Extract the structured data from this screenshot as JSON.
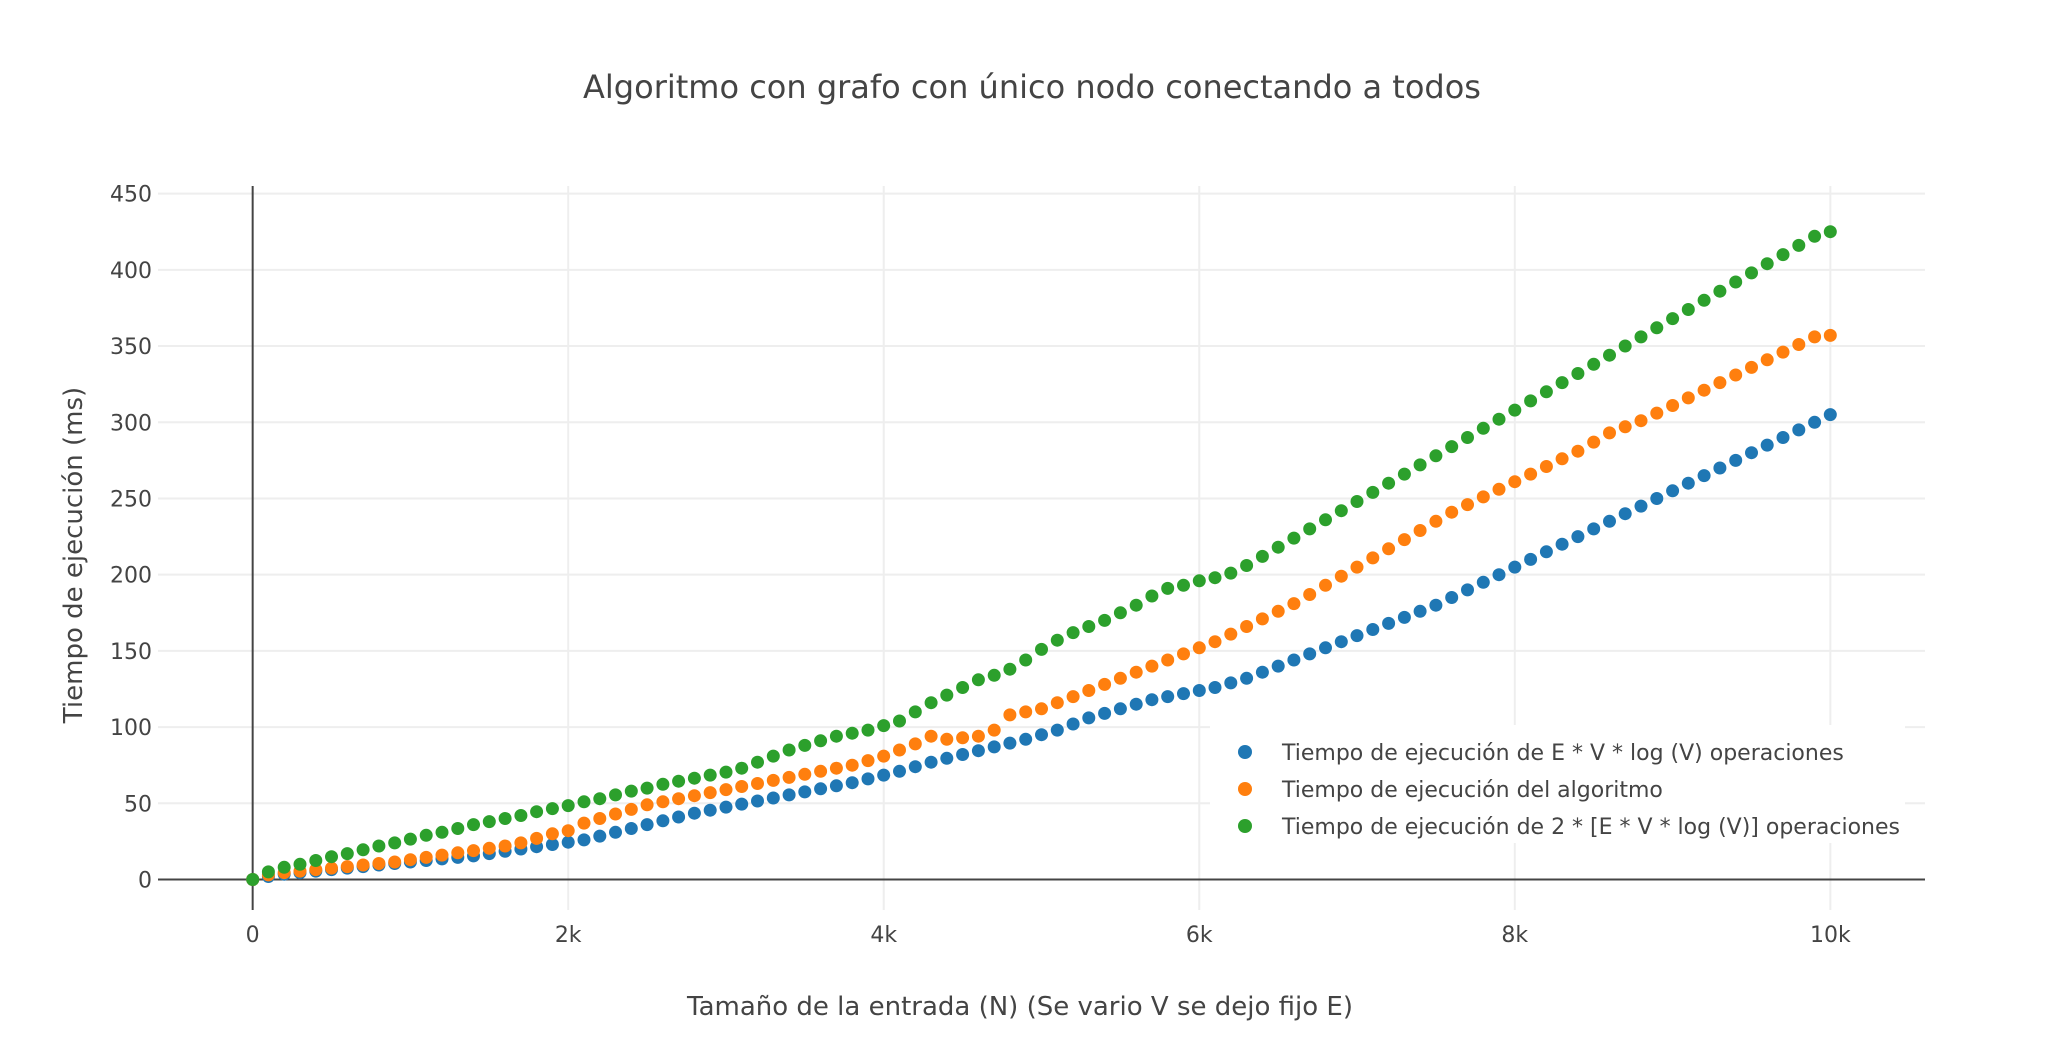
{
  "chart_data": {
    "type": "scatter",
    "title": "Algoritmo con grafo con único nodo conectando a todos",
    "xlabel": "Tamaño de la entrada (N) (Se vario V se dejo fijo E)",
    "ylabel": "Tiempo de ejecución (ms)",
    "xlim": [
      -600,
      10600
    ],
    "ylim": [
      -20,
      455
    ],
    "x_ticks": [
      0,
      2000,
      4000,
      6000,
      8000,
      10000
    ],
    "x_tick_labels": [
      "0",
      "2k",
      "4k",
      "6k",
      "8k",
      "10k"
    ],
    "y_ticks": [
      0,
      50,
      100,
      150,
      200,
      250,
      300,
      350,
      400,
      450
    ],
    "y_tick_labels": [
      "0",
      "50",
      "100",
      "150",
      "200",
      "250",
      "300",
      "350",
      "400",
      "450"
    ],
    "grid": true,
    "legend_position": "bottom-right",
    "x": [
      0,
      100,
      200,
      300,
      400,
      500,
      600,
      700,
      800,
      900,
      1000,
      1100,
      1200,
      1300,
      1400,
      1500,
      1600,
      1700,
      1800,
      1900,
      2000,
      2100,
      2200,
      2300,
      2400,
      2500,
      2600,
      2700,
      2800,
      2900,
      3000,
      3100,
      3200,
      3300,
      3400,
      3500,
      3600,
      3700,
      3800,
      3900,
      4000,
      4100,
      4200,
      4300,
      4400,
      4500,
      4600,
      4700,
      4800,
      4900,
      5000,
      5100,
      5200,
      5300,
      5400,
      5500,
      5600,
      5700,
      5800,
      5900,
      6000,
      6100,
      6200,
      6300,
      6400,
      6500,
      6600,
      6700,
      6800,
      6900,
      7000,
      7100,
      7200,
      7300,
      7400,
      7500,
      7600,
      7700,
      7800,
      7900,
      8000,
      8100,
      8200,
      8300,
      8400,
      8500,
      8600,
      8700,
      8800,
      8900,
      9000,
      9100,
      9200,
      9300,
      9400,
      9500,
      9600,
      9700,
      9800,
      9900,
      10000
    ],
    "series": [
      {
        "name": "Tiempo de ejecución de E * V * log (V) operaciones",
        "color": "#1f77b4",
        "values": [
          0,
          2,
          3.5,
          4.5,
          5.5,
          6.5,
          7.5,
          8.5,
          9.5,
          10.5,
          11.5,
          12.5,
          13.5,
          14.5,
          15.5,
          17,
          18.5,
          20,
          21.5,
          23,
          24.5,
          26,
          28.5,
          31,
          33.5,
          36,
          38.5,
          41,
          43.5,
          45.5,
          47.5,
          49.5,
          51.5,
          53.5,
          55.5,
          57.5,
          59.5,
          61.5,
          63.5,
          66,
          68.5,
          71,
          74,
          77,
          79.5,
          82,
          84.5,
          87,
          89.5,
          92,
          95,
          98,
          102,
          106,
          109,
          112,
          115,
          118,
          120,
          122,
          124,
          126,
          129,
          132,
          136,
          140,
          144,
          148,
          152,
          156,
          160,
          164,
          168,
          172,
          176,
          180,
          185,
          190,
          195,
          200,
          205,
          210,
          215,
          220,
          225,
          230,
          235,
          240,
          245,
          250,
          255,
          260,
          265,
          270,
          275,
          280,
          285,
          290,
          295,
          300,
          305
        ]
      },
      {
        "name": "Tiempo de ejecución del algoritmo",
        "color": "#ff7f0e",
        "values": [
          0,
          3,
          4.5,
          5.5,
          6.5,
          7.5,
          8.5,
          9.5,
          10.5,
          11.5,
          13,
          14.5,
          16,
          17.5,
          19,
          20.5,
          22,
          24,
          27,
          30,
          32,
          37,
          40,
          43,
          46,
          49,
          51,
          53,
          55,
          57,
          59,
          61,
          63,
          65,
          67,
          69,
          71,
          73,
          75,
          78,
          81,
          85,
          89,
          94,
          92,
          93,
          94,
          98,
          108,
          110,
          112,
          116,
          120,
          124,
          128,
          132,
          136,
          140,
          144,
          148,
          152,
          156,
          161,
          166,
          171,
          176,
          181,
          187,
          193,
          199,
          205,
          211,
          217,
          223,
          229,
          235,
          241,
          246,
          251,
          256,
          261,
          266,
          271,
          276,
          281,
          287,
          293,
          297,
          301,
          306,
          311,
          316,
          321,
          326,
          331,
          336,
          341,
          346,
          351,
          356,
          357
        ]
      },
      {
        "name": "Tiempo de ejecución de 2 * [E * V * log (V)] operaciones",
        "color": "#2ca02c",
        "values": [
          0,
          5,
          8,
          10,
          12.5,
          15,
          17,
          19.5,
          22,
          24,
          26.5,
          29,
          31,
          33.5,
          36,
          38,
          40,
          42,
          44.5,
          46.5,
          48.5,
          51,
          53,
          55.5,
          58,
          60,
          62.5,
          64.5,
          66.5,
          68.5,
          70.5,
          73,
          77,
          81,
          85,
          88,
          91,
          94,
          96,
          98,
          101,
          104,
          110,
          116,
          121,
          126,
          131,
          134,
          138,
          144,
          151,
          157,
          162,
          166,
          170,
          175,
          180,
          186,
          191,
          193,
          196,
          198,
          201,
          206,
          212,
          218,
          224,
          230,
          236,
          242,
          248,
          254,
          260,
          266,
          272,
          278,
          284,
          290,
          296,
          302,
          308,
          314,
          320,
          326,
          332,
          338,
          344,
          350,
          356,
          362,
          368,
          374,
          380,
          386,
          392,
          398,
          404,
          410,
          416,
          422,
          425
        ]
      }
    ]
  }
}
